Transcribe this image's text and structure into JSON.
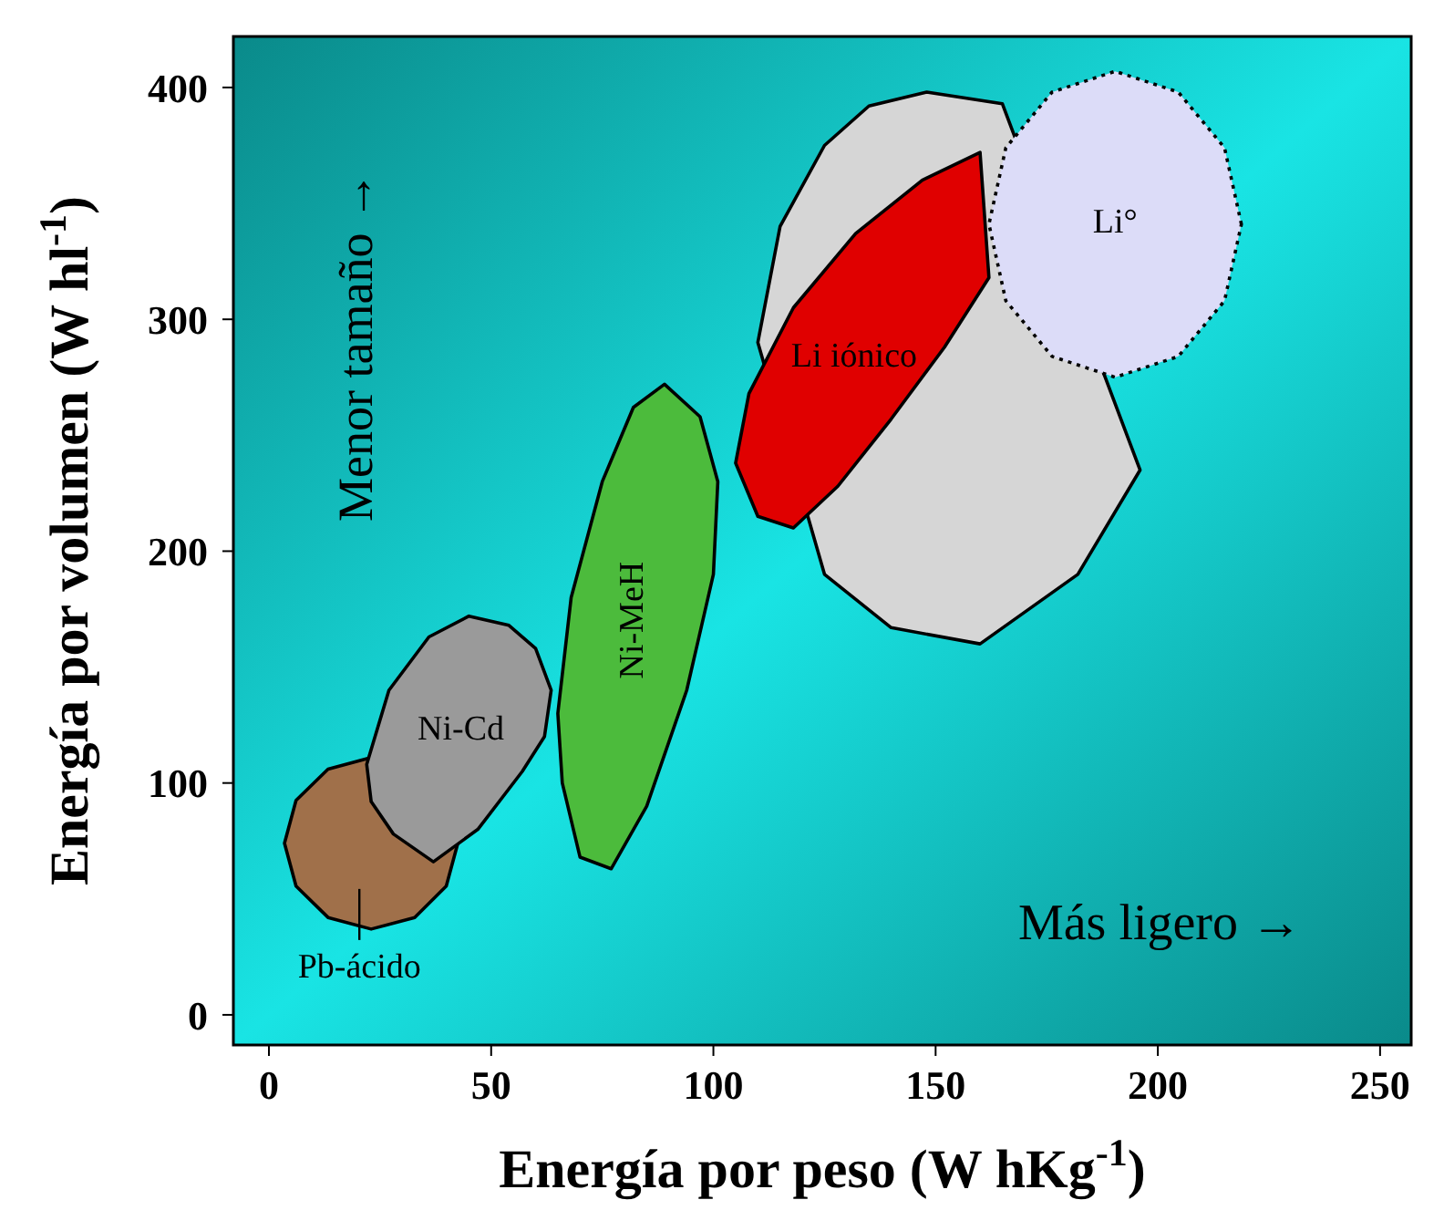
{
  "chart_data": {
    "type": "area",
    "xlabel": "Energía por peso (W hKg$^{-1}$)",
    "ylabel": "Energía por volumen (W hl$^{-1}$)",
    "xlim": [
      -8,
      257
    ],
    "ylim": [
      -13,
      422
    ],
    "xticks": [
      0,
      50,
      100,
      150,
      200,
      250
    ],
    "yticks": [
      0,
      100,
      200,
      300,
      400
    ],
    "annotations": [
      "Menor tamaño →",
      "Más ligero →"
    ],
    "series": [
      {
        "name": "Pb-ácido",
        "color": "#a0704a",
        "x": [
          42.5,
          null,
          null,
          23,
          13.3,
          6.1,
          3.5,
          6.1,
          13.3,
          23,
          32.8,
          39.9,
          42.5
        ],
        "values": [
          74,
          null,
          null,
          111,
          106,
          92.5,
          74,
          55.5,
          42,
          37,
          42,
          55.5,
          74
        ]
      },
      {
        "name": "Ni-Cd",
        "color": "#9a9a9a",
        "x": [
          45,
          54,
          60,
          63.5,
          62,
          57,
          47,
          37,
          28,
          23,
          22,
          27,
          36,
          45
        ],
        "values": [
          172,
          168,
          158,
          140,
          120,
          105,
          80,
          66,
          78,
          92,
          108,
          140,
          163,
          172
        ]
      },
      {
        "name": "Ni-MeH",
        "color": "#4cbb3c",
        "x": [
          89,
          97,
          101,
          100,
          94,
          85,
          77,
          70,
          66,
          65,
          68,
          75,
          82,
          89
        ],
        "values": [
          272,
          258,
          230,
          190,
          140,
          90,
          63,
          68,
          100,
          130,
          180,
          230,
          262,
          272
        ]
      },
      {
        "color": "#d6d6d6",
        "x": [
          148,
          165,
          null,
          null,
          null,
          196,
          182,
          160,
          140,
          125,
          null,
          110,
          115,
          125,
          135,
          148
        ],
        "values": [
          398,
          393,
          null,
          null,
          null,
          235,
          190,
          160,
          167,
          190,
          null,
          290,
          340,
          375,
          392,
          398
        ]
      },
      {
        "name": "Li iónico",
        "color": "#e00000",
        "x": [
          160,
          null,
          null,
          162,
          152,
          140,
          128,
          118,
          110,
          105,
          108,
          118,
          132,
          147,
          160
        ],
        "values": [
          372,
          null,
          null,
          318,
          288,
          257,
          228,
          210,
          215,
          238,
          268,
          305,
          337,
          360,
          372
        ]
      },
      {
        "name": "Li°",
        "color": "#dcdcf8",
        "line_style": "dotted",
        "x": [
          218.8,
          215,
          204.6,
          190.4,
          176.2,
          165.8,
          162,
          165.8,
          176.2,
          190.4,
          204.6,
          215,
          218.8
        ],
        "values": [
          341,
          374,
          398,
          407,
          398,
          374,
          341,
          308,
          284,
          275,
          284,
          308,
          341
        ]
      }
    ]
  }
}
